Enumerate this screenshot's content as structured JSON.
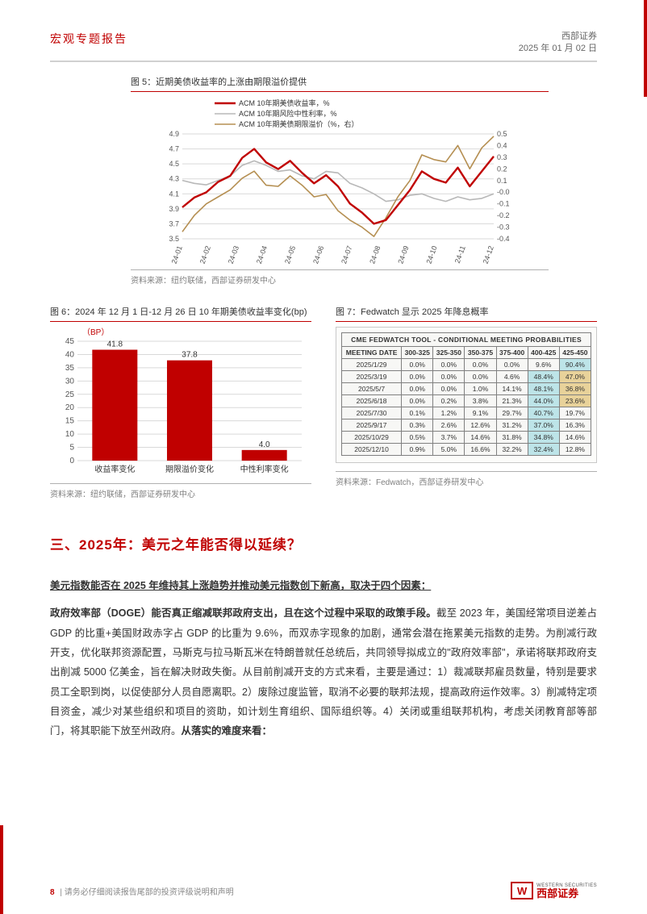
{
  "header": {
    "left": "宏观专题报告",
    "right_top": "西部证券",
    "right_bottom": "2025 年 01 月 02 日"
  },
  "fig5": {
    "title": "图 5：近期美债收益率的上涨由期限溢价提供",
    "legend": [
      "ACM 10年期美债收益率，%",
      "ACM 10年期风险中性利率，%",
      "ACM 10年期美债期限溢价（%，右）"
    ],
    "colors": [
      "#c00000",
      "#b8b8b8",
      "#b58f52"
    ],
    "line_widths": [
      2.4,
      1.6,
      1.6
    ],
    "xlabels": [
      "24-01",
      "24-02",
      "24-03",
      "24-04",
      "24-05",
      "24-06",
      "24-07",
      "24-08",
      "24-09",
      "24-10",
      "24-11",
      "24-12"
    ],
    "y_left": {
      "min": 3.5,
      "max": 4.9,
      "step": 0.2
    },
    "y_right": {
      "min": -0.4,
      "max": 0.5,
      "step": 0.1
    },
    "series_left_1": [
      3.92,
      4.05,
      4.12,
      4.26,
      4.34,
      4.58,
      4.7,
      4.52,
      4.43,
      4.54,
      4.38,
      4.24,
      4.35,
      4.2,
      3.97,
      3.85,
      3.7,
      3.75,
      3.95,
      4.15,
      4.4,
      4.3,
      4.25,
      4.45,
      4.2,
      4.4,
      4.6
    ],
    "series_left_2": [
      4.28,
      4.24,
      4.22,
      4.28,
      4.34,
      4.48,
      4.54,
      4.48,
      4.4,
      4.42,
      4.34,
      4.3,
      4.4,
      4.38,
      4.24,
      4.18,
      4.1,
      4.0,
      4.02,
      4.08,
      4.1,
      4.04,
      4.0,
      4.06,
      4.02,
      4.04,
      4.1
    ],
    "series_right_3": [
      -0.34,
      -0.2,
      -0.1,
      -0.04,
      0.02,
      0.12,
      0.18,
      0.06,
      0.05,
      0.14,
      0.06,
      -0.04,
      -0.02,
      -0.16,
      -0.24,
      -0.3,
      -0.38,
      -0.22,
      -0.04,
      0.1,
      0.32,
      0.28,
      0.26,
      0.4,
      0.2,
      0.38,
      0.48
    ],
    "source": "资料来源：纽约联储，西部证券研发中心",
    "grid_color": "#d9d9d9"
  },
  "fig6": {
    "title": "图 6：2024 年 12 月 1 日-12 月 26 日 10 年期美债收益率变化(bp)",
    "y_unit": "（BP）",
    "categories": [
      "收益率变化",
      "期限溢价变化",
      "中性利率变化"
    ],
    "values": [
      41.8,
      37.8,
      4.0
    ],
    "labels": [
      "41.8",
      "37.8",
      "4.0"
    ],
    "bar_color": "#c00000",
    "ylim": [
      0,
      45
    ],
    "ystep": 5,
    "grid_color": "#d9d9d9",
    "source": "资料来源：纽约联储，西部证券研发中心"
  },
  "fig7": {
    "title": "图 7：Fedwatch 显示 2025 年降息概率",
    "table_title": "CME FEDWATCH TOOL - CONDITIONAL MEETING PROBABILITIES",
    "columns": [
      "MEETING DATE",
      "300-325",
      "325-350",
      "350-375",
      "375-400",
      "400-425",
      "425-450"
    ],
    "rows": [
      [
        "2025/1/29",
        "0.0%",
        "0.0%",
        "0.0%",
        "0.0%",
        "9.6%",
        "90.4%"
      ],
      [
        "2025/3/19",
        "0.0%",
        "0.0%",
        "0.0%",
        "4.6%",
        "48.4%",
        "47.0%"
      ],
      [
        "2025/5/7",
        "0.0%",
        "0.0%",
        "1.0%",
        "14.1%",
        "48.1%",
        "36.8%"
      ],
      [
        "2025/6/18",
        "0.0%",
        "0.2%",
        "3.8%",
        "21.3%",
        "44.0%",
        "23.6%"
      ],
      [
        "2025/7/30",
        "0.1%",
        "1.2%",
        "9.1%",
        "29.7%",
        "40.7%",
        "19.7%"
      ],
      [
        "2025/9/17",
        "0.3%",
        "2.6%",
        "12.6%",
        "31.2%",
        "37.0%",
        "16.3%"
      ],
      [
        "2025/10/29",
        "0.5%",
        "3.7%",
        "14.6%",
        "31.8%",
        "34.8%",
        "14.6%"
      ],
      [
        "2025/12/10",
        "0.9%",
        "5.0%",
        "16.6%",
        "32.2%",
        "32.4%",
        "12.8%"
      ]
    ],
    "shade_color": "#bde4e8",
    "gold_color": "#e8d29a",
    "source": "资料来源：Fedwatch，西部证券研发中心"
  },
  "section": {
    "title": "三、2025年：美元之年能否得以延续？",
    "p1_lead": "美元指数能否在 2025 年维持其上涨趋势并推动美元指数创下新高，取决于四个因素：",
    "p2_bold": "政府效率部（DOGE）能否真正缩减联邦政府支出，且在这个过程中采取的政策手段。",
    "p2_rest": "截至 2023 年，美国经常项目逆差占 GDP 的比重+美国财政赤字占 GDP 的比重为 9.6%，而双赤字现象的加剧，通常会潜在拖累美元指数的走势。为削减行政开支，优化联邦资源配置，马斯克与拉马斯瓦米在特朗普就任总统后，共同领导拟成立的\"政府效率部\"，承诺将联邦政府支出削减 5000 亿美金，旨在解决财政失衡。从目前削减开支的方式来看，主要是通过：1）裁减联邦雇员数量，特别是要求员工全职到岗，以促使部分人员自愿离职。2）废除过度监管，取消不必要的联邦法规，提高政府运作效率。3）削减特定项目资金，减少对某些组织和项目的资助，如计划生育组织、国际组织等。4）关闭或重组联邦机构，考虑关闭教育部等部门，将其职能下放至州政府。",
    "p2_tail_bold": "从落实的难度来看："
  },
  "footer": {
    "page": "8",
    "note": "| 请务必仔细阅读报告尾部的投资评级说明和声明",
    "brand": "西部证券",
    "brand_en": "WESTERN SECURITIES"
  }
}
